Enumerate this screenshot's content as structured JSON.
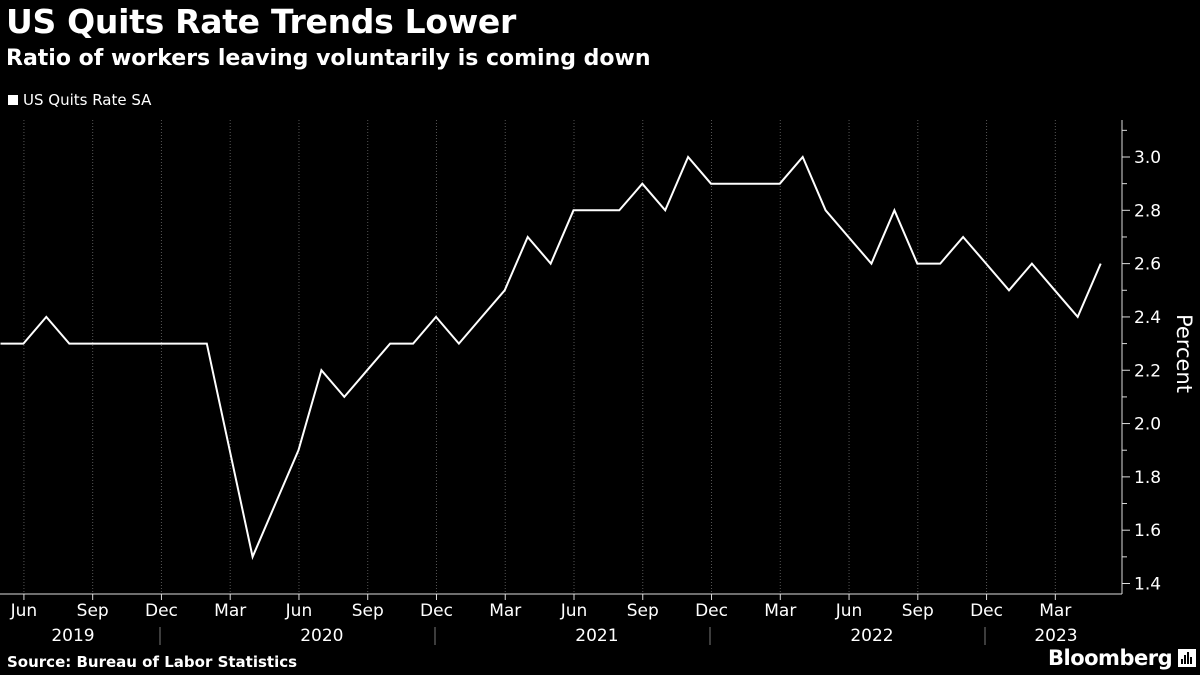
{
  "chart_data": {
    "type": "line",
    "title": "US Quits Rate Trends Lower",
    "subtitle": "Ratio of workers leaving voluntarily is coming down",
    "legend": [
      "US Quits Rate SA"
    ],
    "legend_position": "top-left",
    "ylabel": "Percent",
    "ylim": [
      1.4,
      3.1
    ],
    "yticks": [
      "1.4",
      "1.6",
      "1.8",
      "2.0",
      "2.2",
      "2.4",
      "2.6",
      "2.8",
      "3.0"
    ],
    "y_axis_side": "right",
    "grid": "vertical dotted",
    "x_month_labels": [
      "Jun",
      "Sep",
      "Dec",
      "Mar",
      "Jun",
      "Sep",
      "Dec",
      "Mar",
      "Jun",
      "Sep",
      "Dec",
      "Mar",
      "Jun",
      "Sep",
      "Dec",
      "Mar"
    ],
    "x_year_labels": [
      "2019",
      "2020",
      "2021",
      "2022",
      "2023"
    ],
    "x": [
      "2019-05",
      "2019-06",
      "2019-07",
      "2019-08",
      "2019-09",
      "2019-10",
      "2019-11",
      "2019-12",
      "2020-01",
      "2020-02",
      "2020-03",
      "2020-04",
      "2020-05",
      "2020-06",
      "2020-07",
      "2020-08",
      "2020-09",
      "2020-10",
      "2020-11",
      "2020-12",
      "2021-01",
      "2021-02",
      "2021-03",
      "2021-04",
      "2021-05",
      "2021-06",
      "2021-07",
      "2021-08",
      "2021-09",
      "2021-10",
      "2021-11",
      "2021-12",
      "2022-01",
      "2022-02",
      "2022-03",
      "2022-04",
      "2022-05",
      "2022-06",
      "2022-07",
      "2022-08",
      "2022-09",
      "2022-10",
      "2022-11",
      "2022-12",
      "2023-01",
      "2023-02",
      "2023-03",
      "2023-04",
      "2023-05"
    ],
    "series": [
      {
        "name": "US Quits Rate SA",
        "color": "#ffffff",
        "values": [
          2.3,
          2.3,
          2.4,
          2.3,
          2.3,
          2.3,
          2.3,
          2.3,
          2.3,
          2.3,
          1.9,
          1.5,
          1.7,
          1.9,
          2.2,
          2.1,
          2.2,
          2.3,
          2.3,
          2.4,
          2.3,
          2.4,
          2.5,
          2.7,
          2.6,
          2.8,
          2.8,
          2.8,
          2.9,
          2.8,
          3.0,
          2.9,
          2.9,
          2.9,
          2.9,
          3.0,
          2.8,
          2.7,
          2.6,
          2.8,
          2.6,
          2.6,
          2.7,
          2.6,
          2.5,
          2.6,
          2.5,
          2.4,
          2.6
        ]
      }
    ]
  },
  "footer": {
    "source": "Source: Bureau of Labor Statistics",
    "brand": "Bloomberg"
  }
}
